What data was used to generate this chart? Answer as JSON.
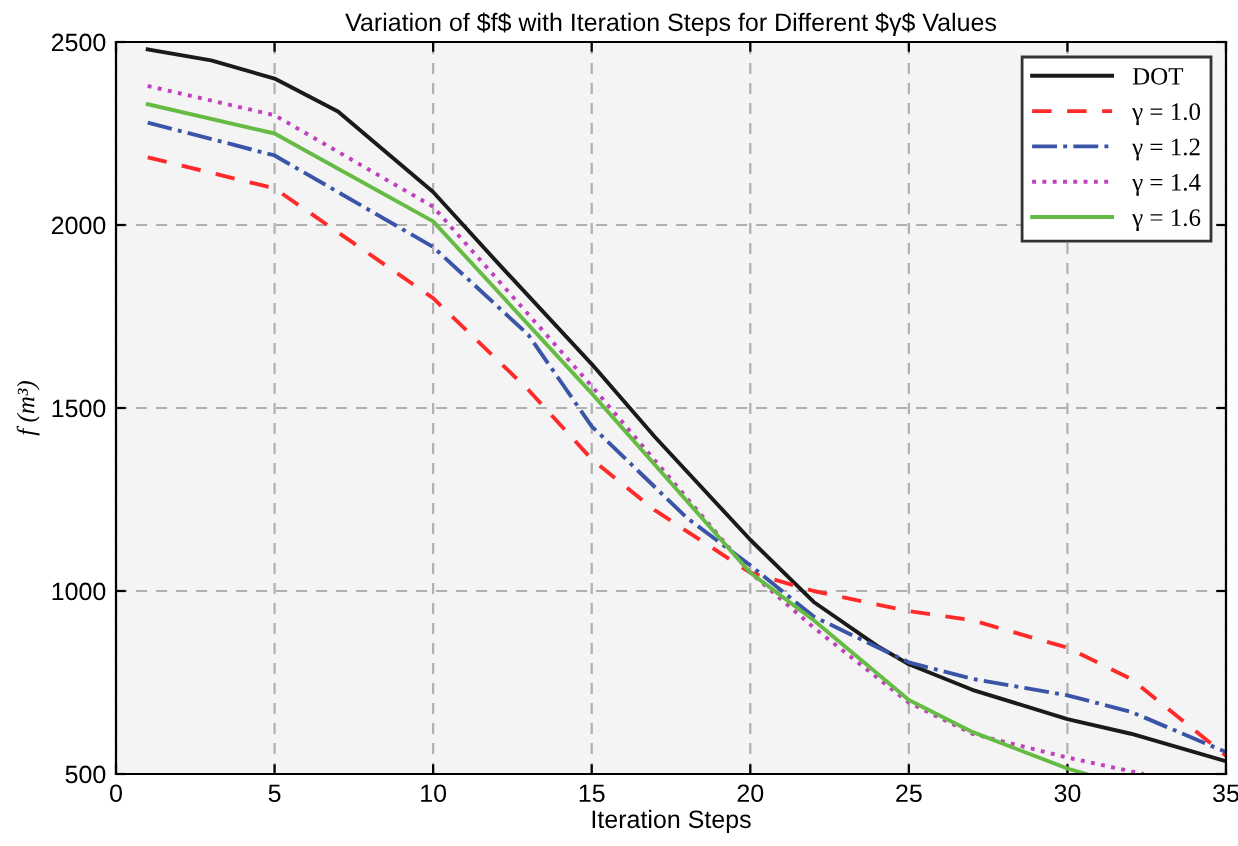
{
  "chart_data": {
    "type": "line",
    "title": "Variation of $f$ with Iteration Steps for Different $γ$ Values",
    "xlabel": "Iteration Steps",
    "ylabel": "f (m³)",
    "xlim": [
      0,
      35
    ],
    "ylim": [
      500,
      2500
    ],
    "xticks": [
      0,
      5,
      10,
      15,
      20,
      25,
      30,
      35
    ],
    "yticks": [
      500,
      1000,
      1500,
      2000,
      2500
    ],
    "grid": true,
    "legend": "top right",
    "marker": "none",
    "series": [
      {
        "name": "DOT",
        "color": "#1a1a1a",
        "line_style": "solid",
        "x": [
          1,
          3,
          5,
          7,
          10,
          12,
          15,
          17,
          20,
          22,
          24,
          25,
          27,
          30,
          32,
          35
        ],
        "values": [
          2480,
          2450,
          2400,
          2310,
          2090,
          1900,
          1620,
          1420,
          1140,
          970,
          850,
          800,
          730,
          650,
          610,
          535
        ]
      },
      {
        "name": "γ = 1.0",
        "color": "#ff2a2a",
        "line_style": "dashed",
        "x": [
          1,
          5,
          10,
          13,
          15,
          17,
          20,
          22,
          25,
          27,
          30,
          32,
          35
        ],
        "values": [
          2185,
          2100,
          1800,
          1550,
          1360,
          1220,
          1050,
          1000,
          945,
          920,
          845,
          760,
          550
        ]
      },
      {
        "name": "γ = 1.2",
        "color": "#3a55a8",
        "line_style": "dashdot",
        "x": [
          1,
          5,
          10,
          13,
          15,
          18,
          20,
          22,
          25,
          27,
          30,
          32,
          35
        ],
        "values": [
          2280,
          2190,
          1940,
          1700,
          1450,
          1200,
          1070,
          930,
          805,
          760,
          715,
          670,
          560
        ]
      },
      {
        "name": "γ = 1.4",
        "color": "#c040c0",
        "line_style": "dotted",
        "x": [
          1,
          5,
          10,
          15,
          20,
          22,
          25,
          27,
          30,
          32.4
        ],
        "values": [
          2380,
          2300,
          2050,
          1560,
          1050,
          900,
          695,
          610,
          545,
          500
        ]
      },
      {
        "name": "γ = 1.6",
        "color": "#66bb44",
        "line_style": "solid",
        "x": [
          1,
          5,
          10,
          15,
          20,
          22,
          25,
          27,
          30,
          30.6
        ],
        "values": [
          2330,
          2250,
          2010,
          1540,
          1050,
          920,
          702,
          615,
          515,
          500
        ]
      }
    ]
  }
}
